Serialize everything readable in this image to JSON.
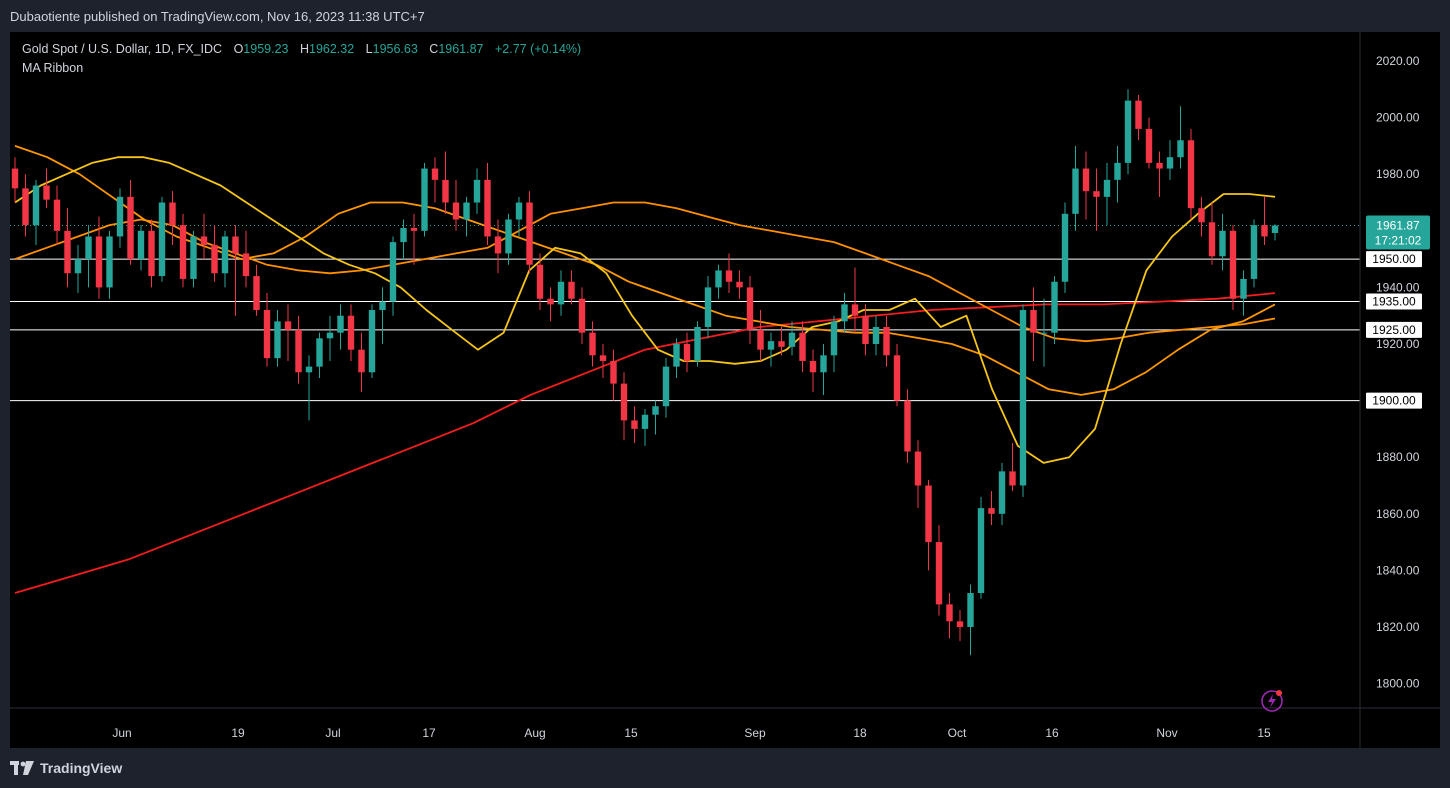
{
  "header": {
    "publisher": "Dubaotiente published on TradingView.com, Nov 16, 2023 11:38 UTC+7"
  },
  "legend": {
    "symbol": "Gold Spot / U.S. Dollar, 1D, FX_IDC",
    "o_label": "O",
    "o_value": "1959.23",
    "h_label": "H",
    "h_value": "1962.32",
    "l_label": "L",
    "l_value": "1956.63",
    "c_label": "C",
    "c_value": "1961.87",
    "change": "+2.77 (+0.14%)",
    "indicator": "MA Ribbon"
  },
  "footer": {
    "brand": "TradingView"
  },
  "colors": {
    "up": "#26a69a",
    "down": "#f23645",
    "background": "#000000",
    "ma_fast": "#f5c518",
    "ma_mid": "#ff9800",
    "ma_slow_orange": "#ff8f00",
    "ma_long": "#f51d1d",
    "hline": "#ffffff",
    "axis_text": "#d1d4dc"
  },
  "icons": {
    "logo": "tradingview-logo-icon",
    "snapshot": "lightning-icon"
  },
  "chart_data": {
    "type": "candlestick",
    "y_ticks": [
      "1800.00",
      "1820.00",
      "1840.00",
      "1860.00",
      "1880.00",
      "1900.00",
      "1920.00",
      "1940.00",
      "1960.00",
      "1980.00",
      "2000.00",
      "2020.00"
    ],
    "x_ticks": [
      "Jun",
      "19",
      "Jul",
      "17",
      "Aug",
      "15",
      "Sep",
      "18",
      "Oct",
      "16",
      "Nov",
      "15"
    ],
    "horizontal_levels": [
      {
        "value": 1950.0,
        "label": "1950.00"
      },
      {
        "value": 1935.0,
        "label": "1935.00"
      },
      {
        "value": 1925.0,
        "label": "1925.00"
      },
      {
        "value": 1900.0,
        "label": "1900.00"
      }
    ],
    "last_price": {
      "value": 1961.87,
      "label": "1961.87",
      "countdown": "17:21:02"
    },
    "ylim": [
      1791,
      2031
    ],
    "candles": [
      [
        1982,
        1986,
        1970,
        1975
      ],
      [
        1975,
        1980,
        1958,
        1962
      ],
      [
        1962,
        1978,
        1955,
        1976
      ],
      [
        1976,
        1982,
        1968,
        1971
      ],
      [
        1971,
        1976,
        1955,
        1960
      ],
      [
        1960,
        1968,
        1940,
        1945
      ],
      [
        1945,
        1955,
        1938,
        1950
      ],
      [
        1950,
        1962,
        1940,
        1958
      ],
      [
        1958,
        1965,
        1936,
        1940
      ],
      [
        1940,
        1960,
        1936,
        1958
      ],
      [
        1958,
        1975,
        1954,
        1972
      ],
      [
        1972,
        1978,
        1948,
        1950
      ],
      [
        1950,
        1962,
        1946,
        1960
      ],
      [
        1960,
        1964,
        1940,
        1944
      ],
      [
        1944,
        1972,
        1942,
        1970
      ],
      [
        1970,
        1974,
        1955,
        1962
      ],
      [
        1962,
        1966,
        1940,
        1943
      ],
      [
        1943,
        1960,
        1940,
        1958
      ],
      [
        1958,
        1966,
        1950,
        1955
      ],
      [
        1955,
        1962,
        1942,
        1945
      ],
      [
        1945,
        1960,
        1940,
        1958
      ],
      [
        1958,
        1962,
        1930,
        1952
      ],
      [
        1952,
        1960,
        1940,
        1944
      ],
      [
        1944,
        1948,
        1930,
        1932
      ],
      [
        1932,
        1938,
        1912,
        1915
      ],
      [
        1915,
        1932,
        1912,
        1928
      ],
      [
        1928,
        1934,
        1914,
        1925
      ],
      [
        1925,
        1930,
        1906,
        1910
      ],
      [
        1910,
        1916,
        1893,
        1912
      ],
      [
        1912,
        1924,
        1908,
        1922
      ],
      [
        1922,
        1930,
        1914,
        1924
      ],
      [
        1924,
        1934,
        1918,
        1930
      ],
      [
        1930,
        1934,
        1914,
        1918
      ],
      [
        1918,
        1924,
        1903,
        1910
      ],
      [
        1910,
        1934,
        1908,
        1932
      ],
      [
        1932,
        1940,
        1920,
        1935
      ],
      [
        1935,
        1958,
        1930,
        1956
      ],
      [
        1956,
        1964,
        1950,
        1961
      ],
      [
        1961,
        1966,
        1948,
        1960
      ],
      [
        1960,
        1984,
        1958,
        1982
      ],
      [
        1982,
        1986,
        1970,
        1978
      ],
      [
        1978,
        1988,
        1966,
        1970
      ],
      [
        1970,
        1978,
        1960,
        1964
      ],
      [
        1964,
        1972,
        1958,
        1970
      ],
      [
        1970,
        1982,
        1966,
        1978
      ],
      [
        1978,
        1984,
        1955,
        1958
      ],
      [
        1958,
        1964,
        1945,
        1952
      ],
      [
        1952,
        1966,
        1948,
        1964
      ],
      [
        1964,
        1972,
        1958,
        1970
      ],
      [
        1970,
        1974,
        1945,
        1948
      ],
      [
        1948,
        1952,
        1932,
        1936
      ],
      [
        1936,
        1940,
        1928,
        1934
      ],
      [
        1934,
        1946,
        1930,
        1942
      ],
      [
        1942,
        1946,
        1934,
        1936
      ],
      [
        1936,
        1940,
        1920,
        1924
      ],
      [
        1924,
        1928,
        1912,
        1916
      ],
      [
        1916,
        1920,
        1908,
        1914
      ],
      [
        1914,
        1918,
        1900,
        1906
      ],
      [
        1906,
        1910,
        1886,
        1893
      ],
      [
        1893,
        1898,
        1885,
        1890
      ],
      [
        1890,
        1897,
        1884,
        1895
      ],
      [
        1895,
        1900,
        1888,
        1898
      ],
      [
        1898,
        1915,
        1894,
        1912
      ],
      [
        1912,
        1922,
        1908,
        1920
      ],
      [
        1920,
        1924,
        1910,
        1914
      ],
      [
        1914,
        1928,
        1912,
        1926
      ],
      [
        1926,
        1944,
        1922,
        1940
      ],
      [
        1940,
        1948,
        1936,
        1946
      ],
      [
        1946,
        1952,
        1938,
        1942
      ],
      [
        1942,
        1946,
        1936,
        1940
      ],
      [
        1940,
        1944,
        1920,
        1925
      ],
      [
        1925,
        1932,
        1914,
        1918
      ],
      [
        1918,
        1924,
        1912,
        1921
      ],
      [
        1921,
        1926,
        1916,
        1919
      ],
      [
        1919,
        1928,
        1916,
        1924
      ],
      [
        1924,
        1928,
        1910,
        1914
      ],
      [
        1914,
        1918,
        1903,
        1910
      ],
      [
        1910,
        1920,
        1902,
        1916
      ],
      [
        1916,
        1930,
        1910,
        1928
      ],
      [
        1928,
        1938,
        1924,
        1934
      ],
      [
        1934,
        1947,
        1924,
        1930
      ],
      [
        1930,
        1934,
        1916,
        1920
      ],
      [
        1920,
        1930,
        1916,
        1926
      ],
      [
        1926,
        1930,
        1912,
        1916
      ],
      [
        1916,
        1920,
        1898,
        1900
      ],
      [
        1900,
        1904,
        1878,
        1882
      ],
      [
        1882,
        1886,
        1862,
        1870
      ],
      [
        1870,
        1872,
        1840,
        1850
      ],
      [
        1850,
        1856,
        1824,
        1828
      ],
      [
        1828,
        1832,
        1816,
        1822
      ],
      [
        1822,
        1826,
        1815,
        1820
      ],
      [
        1820,
        1835,
        1810,
        1832
      ],
      [
        1832,
        1866,
        1830,
        1862
      ],
      [
        1862,
        1868,
        1856,
        1860
      ],
      [
        1860,
        1878,
        1856,
        1875
      ],
      [
        1875,
        1885,
        1868,
        1870
      ],
      [
        1870,
        1934,
        1866,
        1932
      ],
      [
        1932,
        1940,
        1914,
        1924
      ],
      [
        1924,
        1936,
        1912,
        1924
      ],
      [
        1924,
        1944,
        1920,
        1942
      ],
      [
        1942,
        1970,
        1938,
        1966
      ],
      [
        1966,
        1990,
        1960,
        1982
      ],
      [
        1982,
        1988,
        1964,
        1974
      ],
      [
        1974,
        1982,
        1960,
        1972
      ],
      [
        1972,
        1984,
        1962,
        1978
      ],
      [
        1978,
        1990,
        1970,
        1984
      ],
      [
        1984,
        2010,
        1980,
        2006
      ],
      [
        2006,
        2008,
        1992,
        1996
      ],
      [
        1996,
        2000,
        1982,
        1984
      ],
      [
        1984,
        1988,
        1972,
        1982
      ],
      [
        1982,
        1992,
        1978,
        1986
      ],
      [
        1986,
        2004,
        1982,
        1992
      ],
      [
        1992,
        1996,
        1964,
        1968
      ],
      [
        1968,
        1972,
        1958,
        1963
      ],
      [
        1963,
        1970,
        1948,
        1951
      ],
      [
        1951,
        1966,
        1946,
        1960
      ],
      [
        1960,
        1962,
        1932,
        1936
      ],
      [
        1936,
        1946,
        1930,
        1943
      ],
      [
        1943,
        1964,
        1940,
        1962
      ],
      [
        1962,
        1972,
        1955,
        1958
      ],
      [
        1959.23,
        1962.32,
        1956.63,
        1961.87
      ]
    ],
    "ma_ribbon": {
      "ma_fast": [
        1970,
        1976,
        1980,
        1984,
        1986,
        1986,
        1984,
        1980,
        1976,
        1970,
        1964,
        1958,
        1952,
        1948,
        1945,
        1940,
        1932,
        1925,
        1918,
        1924,
        1946,
        1954,
        1952,
        1945,
        1930,
        1918,
        1914,
        1914,
        1913,
        1914,
        1918,
        1926,
        1928,
        1932,
        1932,
        1936,
        1926,
        1930,
        1904,
        1884,
        1878,
        1880,
        1890,
        1920,
        1946,
        1958,
        1966,
        1973,
        1973,
        1972
      ],
      "ma_mid": [
        1990,
        1986,
        1980,
        1972,
        1964,
        1958,
        1954,
        1950,
        1952,
        1958,
        1966,
        1970,
        1970,
        1968,
        1964,
        1960,
        1956,
        1952,
        1948,
        1942,
        1938,
        1934,
        1930,
        1928,
        1926,
        1925,
        1924,
        1924,
        1922,
        1920,
        1916,
        1910,
        1904,
        1902,
        1904,
        1910,
        1918,
        1925,
        1928,
        1934
      ],
      "ma_slow_orange": [
        1950,
        1954,
        1958,
        1962,
        1964,
        1962,
        1956,
        1952,
        1948,
        1946,
        1945,
        1946,
        1948,
        1950,
        1952,
        1954,
        1960,
        1966,
        1968,
        1970,
        1970,
        1968,
        1965,
        1962,
        1960,
        1958,
        1956,
        1952,
        1948,
        1944,
        1938,
        1932,
        1926,
        1922,
        1921,
        1922,
        1924,
        1925,
        1926,
        1927,
        1929
      ],
      "ma_long": [
        1832,
        1838,
        1844,
        1852,
        1860,
        1868,
        1876,
        1884,
        1892,
        1902,
        1910,
        1918,
        1922,
        1926,
        1928,
        1930,
        1932,
        1933,
        1934,
        1934,
        1935,
        1936,
        1938
      ]
    }
  }
}
